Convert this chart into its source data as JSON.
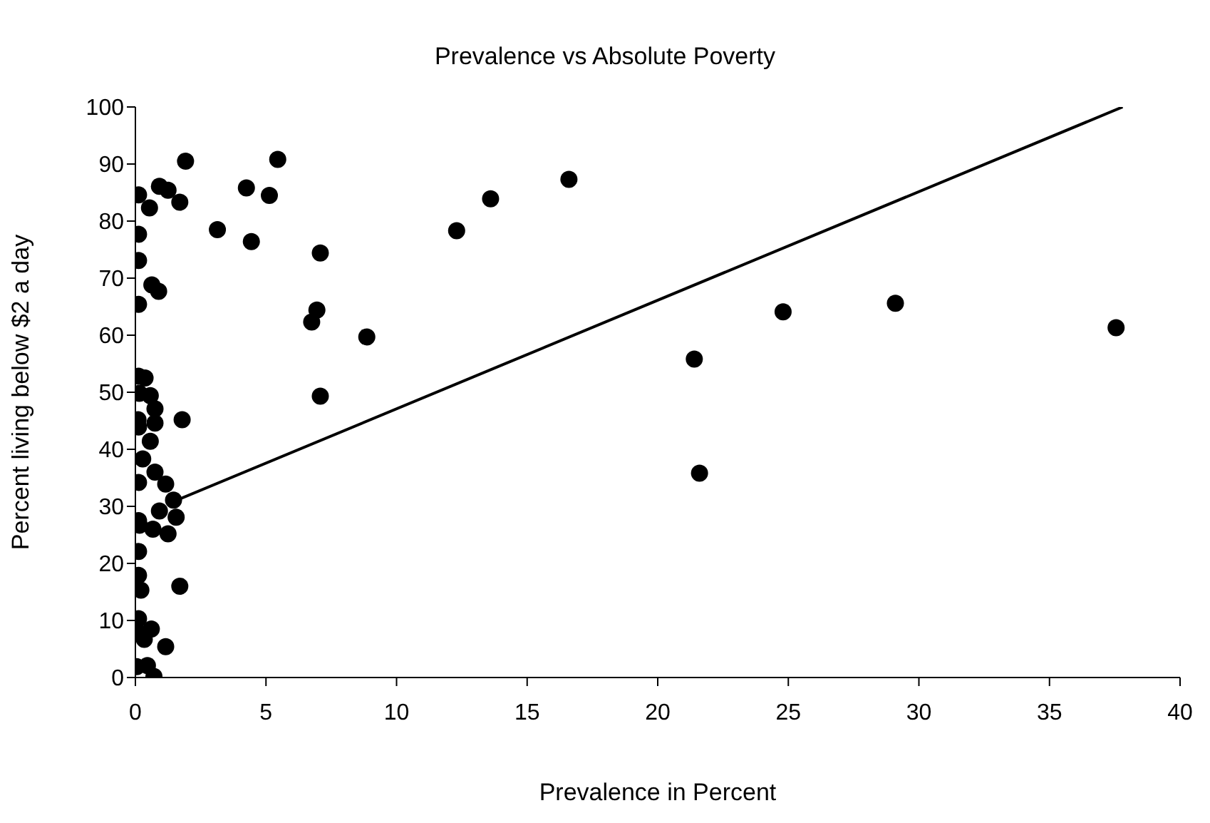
{
  "chart_data": {
    "type": "scatter",
    "title": "Prevalence vs Absolute Poverty",
    "xlabel": "Prevalence in Percent",
    "ylabel": "Percent living below $2 a day",
    "xlim": [
      0,
      40
    ],
    "xticks": [
      0,
      5,
      10,
      15,
      20,
      25,
      30,
      35,
      40
    ],
    "ylim": [
      0,
      100
    ],
    "yticks": [
      0,
      10,
      20,
      30,
      40,
      50,
      60,
      70,
      80,
      90,
      100
    ],
    "grid": false,
    "legend": false,
    "marker": "circle",
    "series": [
      {
        "type": "scatter",
        "color": "#000000",
        "x": [
          0.12,
          0.54,
          0.92,
          1.25,
          1.7,
          1.92,
          4.25,
          5.13,
          5.45,
          3.14,
          4.44,
          7.08,
          6.95,
          6.75,
          0.12,
          0.12,
          0.63,
          0.89,
          0.12,
          0.12,
          0.37,
          8.86,
          7.08,
          12.3,
          13.6,
          16.6,
          21.4,
          21.6,
          24.8,
          29.1,
          37.55,
          0.15,
          0.57,
          0.75,
          0.1,
          0.75,
          0.12,
          1.79,
          0.57,
          0.28,
          0.75,
          1.16,
          0.12,
          1.46,
          0.92,
          1.56,
          0.12,
          0.15,
          0.67,
          1.25,
          0.12,
          0.12,
          0.21,
          1.7,
          0.12,
          0.15,
          0.61,
          0.34,
          1.16,
          0.05,
          0.46,
          0.71
        ],
        "values": [
          84.6,
          82.3,
          86.1,
          85.4,
          83.3,
          90.5,
          85.8,
          84.5,
          90.8,
          78.5,
          76.4,
          74.4,
          64.4,
          62.3,
          77.7,
          73.1,
          68.8,
          67.7,
          65.4,
          52.8,
          52.5,
          59.7,
          49.3,
          78.3,
          83.9,
          87.3,
          55.8,
          35.8,
          64.1,
          65.6,
          61.3,
          49.8,
          49.4,
          47.1,
          45.2,
          44.6,
          43.9,
          45.2,
          41.4,
          38.3,
          36,
          33.9,
          34.2,
          31.1,
          29.2,
          28.1,
          27.5,
          26.7,
          26,
          25.2,
          22.1,
          17.9,
          15.3,
          16,
          10.3,
          7.8,
          8.5,
          6.7,
          5.4,
          1.9,
          2.1,
          0.2
        ]
      },
      {
        "type": "line",
        "color": "#000000",
        "marker": "none",
        "x": [
          1.7,
          37.8
        ],
        "values": [
          31.3,
          100
        ]
      }
    ]
  }
}
